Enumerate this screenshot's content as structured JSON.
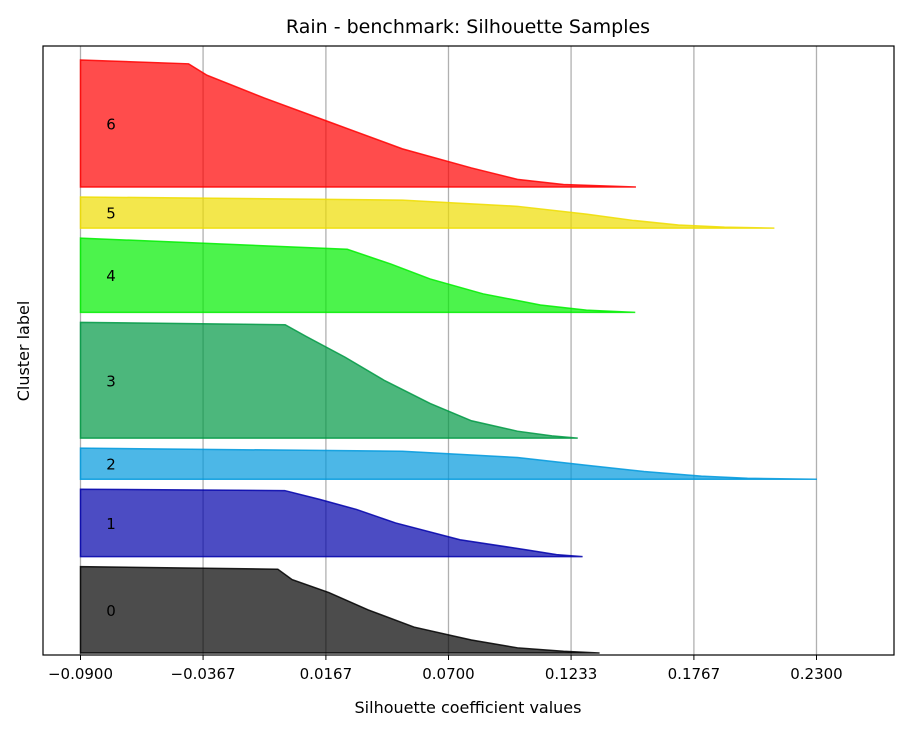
{
  "chart_data": {
    "type": "area",
    "title": "Rain - benchmark: Silhouette Samples",
    "xlabel": "Silhouette coefficient values",
    "ylabel": "Cluster label",
    "xlim": [
      -0.1063,
      0.2637
    ],
    "x_ticks": [
      "-0.0900",
      "-0.0367",
      "0.0167",
      "0.0700",
      "0.1233",
      "0.1767",
      "0.2300"
    ],
    "x_tick_values": [
      -0.09,
      -0.0367,
      0.0167,
      0.07,
      0.1233,
      0.1767,
      0.23
    ],
    "grid": "vertical",
    "baseline": -0.09,
    "clusters": [
      {
        "label": "0",
        "color": "#000000",
        "size": 100,
        "silhouette": [
          [
            0,
            0.1357
          ],
          [
            0.02,
            0.12
          ],
          [
            0.06,
            0.1
          ],
          [
            0.15,
            0.08
          ],
          [
            0.3,
            0.055
          ],
          [
            0.5,
            0.035
          ],
          [
            0.7,
            0.018
          ],
          [
            0.85,
            0.002
          ],
          [
            0.97,
            -0.0042
          ],
          [
            1,
            -0.09
          ]
        ]
      },
      {
        "label": "1",
        "color": "#0000aa",
        "size": 78,
        "silhouette": [
          [
            0,
            0.1283
          ],
          [
            0.03,
            0.117
          ],
          [
            0.1,
            0.104
          ],
          [
            0.25,
            0.075
          ],
          [
            0.5,
            0.047
          ],
          [
            0.7,
            0.03
          ],
          [
            0.85,
            0.014
          ],
          [
            0.98,
            -0.0012
          ],
          [
            1,
            -0.09
          ]
        ]
      },
      {
        "label": "2",
        "color": "#0099dd",
        "size": 36,
        "silhouette": [
          [
            0,
            0.2302
          ],
          [
            0.03,
            0.2
          ],
          [
            0.1,
            0.18
          ],
          [
            0.25,
            0.155
          ],
          [
            0.45,
            0.13
          ],
          [
            0.7,
            0.1
          ],
          [
            0.9,
            0.05
          ],
          [
            1,
            -0.09
          ]
        ]
      },
      {
        "label": "3",
        "color": "#009944",
        "size": 134,
        "silhouette": [
          [
            0,
            0.1262
          ],
          [
            0.02,
            0.115
          ],
          [
            0.06,
            0.1
          ],
          [
            0.15,
            0.08
          ],
          [
            0.3,
            0.062
          ],
          [
            0.5,
            0.042
          ],
          [
            0.7,
            0.025
          ],
          [
            0.88,
            0.008
          ],
          [
            0.98,
            -0.001
          ],
          [
            1,
            -0.09
          ]
        ]
      },
      {
        "label": "4",
        "color": "#00ee00",
        "size": 86,
        "silhouette": [
          [
            0,
            0.1512
          ],
          [
            0.03,
            0.13
          ],
          [
            0.1,
            0.11
          ],
          [
            0.25,
            0.085
          ],
          [
            0.45,
            0.062
          ],
          [
            0.65,
            0.045
          ],
          [
            0.85,
            0.026
          ],
          [
            1,
            -0.09
          ]
        ]
      },
      {
        "label": "5",
        "color": "#eedd00",
        "size": 36,
        "silhouette": [
          [
            0,
            0.2117
          ],
          [
            0.03,
            0.19
          ],
          [
            0.1,
            0.17
          ],
          [
            0.25,
            0.15
          ],
          [
            0.45,
            0.13
          ],
          [
            0.7,
            0.1
          ],
          [
            0.9,
            0.05
          ],
          [
            1,
            -0.09
          ]
        ]
      },
      {
        "label": "6",
        "color": "#ff0000",
        "size": 147,
        "silhouette": [
          [
            0,
            0.1515
          ],
          [
            0.02,
            0.12
          ],
          [
            0.06,
            0.1
          ],
          [
            0.15,
            0.08
          ],
          [
            0.3,
            0.05
          ],
          [
            0.5,
            0.02
          ],
          [
            0.7,
            -0.01
          ],
          [
            0.88,
            -0.035
          ],
          [
            0.97,
            -0.043
          ],
          [
            1,
            -0.09
          ]
        ]
      }
    ]
  }
}
